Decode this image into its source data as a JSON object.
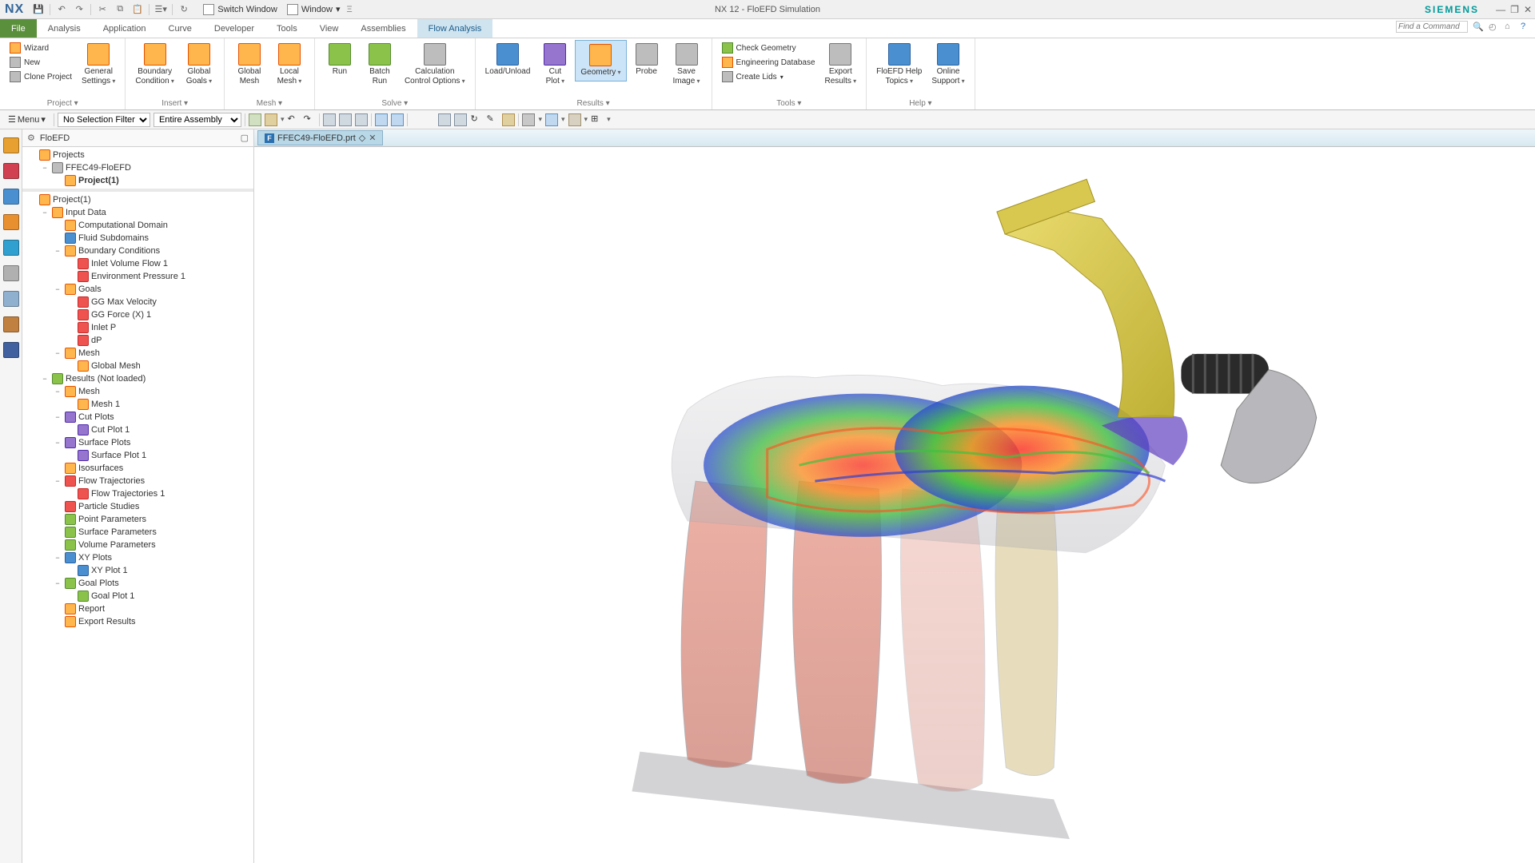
{
  "titlebar": {
    "logo": "NX",
    "switch_window": "Switch Window",
    "window_menu": "Window",
    "title": "NX 12 - FloEFD Simulation",
    "brand": "SIEMENS"
  },
  "tabs": {
    "file": "File",
    "items": [
      "Analysis",
      "Application",
      "Curve",
      "Developer",
      "Tools",
      "View",
      "Assemblies",
      "Flow Analysis"
    ],
    "active": "Flow Analysis",
    "search_placeholder": "Find a Command"
  },
  "ribbon": {
    "groups": [
      {
        "label": "Project",
        "small": [
          {
            "label": "Wizard",
            "ico": "ico-orange"
          },
          {
            "label": "New",
            "ico": "ico-gray"
          },
          {
            "label": "Clone Project",
            "ico": "ico-gray"
          }
        ],
        "big": [
          {
            "label": "General\nSettings",
            "dd": true,
            "ico": "ico-orange"
          }
        ]
      },
      {
        "label": "Insert",
        "big": [
          {
            "label": "Boundary\nCondition",
            "dd": true,
            "ico": "ico-orange"
          },
          {
            "label": "Global\nGoals",
            "dd": true,
            "ico": "ico-orange"
          }
        ]
      },
      {
        "label": "Mesh",
        "big": [
          {
            "label": "Global\nMesh",
            "ico": "ico-orange"
          },
          {
            "label": "Local\nMesh",
            "dd": true,
            "ico": "ico-orange"
          }
        ]
      },
      {
        "label": "Solve",
        "big": [
          {
            "label": "Run",
            "ico": "ico-green"
          },
          {
            "label": "Batch\nRun",
            "ico": "ico-green"
          },
          {
            "label": "Calculation\nControl Options",
            "dd": true,
            "ico": "ico-gray"
          }
        ]
      },
      {
        "label": "Results",
        "big": [
          {
            "label": "Load/Unload",
            "ico": "ico-blue"
          },
          {
            "label": "Cut\nPlot",
            "dd": true,
            "ico": "ico-purple"
          },
          {
            "label": "Geometry",
            "dd": true,
            "ico": "ico-orange",
            "active": true
          },
          {
            "label": "Probe",
            "ico": "ico-gray"
          },
          {
            "label": "Save\nImage",
            "dd": true,
            "ico": "ico-gray"
          }
        ]
      },
      {
        "label": "Tools",
        "small": [
          {
            "label": "Check Geometry",
            "ico": "ico-green"
          },
          {
            "label": "Engineering Database",
            "ico": "ico-orange"
          },
          {
            "label": "Create Lids",
            "dd": true,
            "ico": "ico-gray"
          }
        ],
        "big": [
          {
            "label": "Export\nResults",
            "dd": true,
            "ico": "ico-gray"
          }
        ]
      },
      {
        "label": "Help",
        "big": [
          {
            "label": "FloEFD Help\nTopics",
            "dd": true,
            "ico": "ico-blue"
          },
          {
            "label": "Online\nSupport",
            "dd": true,
            "ico": "ico-blue"
          }
        ]
      }
    ]
  },
  "selbar": {
    "menu": "Menu",
    "filter": "No Selection Filter",
    "scope": "Entire Assembly"
  },
  "panel": {
    "title": "FloEFD",
    "top_tree": [
      {
        "indent": 0,
        "toggle": "",
        "ico": "ico-orange",
        "label": "Projects"
      },
      {
        "indent": 1,
        "toggle": "−",
        "ico": "ico-gray",
        "label": "FFEC49-FloEFD"
      },
      {
        "indent": 2,
        "toggle": "",
        "ico": "ico-orange",
        "label": "Project(1)",
        "bold": true
      }
    ],
    "bot_tree": [
      {
        "indent": 0,
        "toggle": "",
        "ico": "ico-orange",
        "label": "Project(1)"
      },
      {
        "indent": 1,
        "toggle": "−",
        "ico": "ico-orange",
        "label": "Input Data"
      },
      {
        "indent": 2,
        "toggle": "",
        "ico": "ico-orange",
        "label": "Computational Domain"
      },
      {
        "indent": 2,
        "toggle": "",
        "ico": "ico-blue",
        "label": "Fluid Subdomains"
      },
      {
        "indent": 2,
        "toggle": "−",
        "ico": "ico-orange",
        "label": "Boundary Conditions"
      },
      {
        "indent": 3,
        "toggle": "",
        "ico": "ico-red",
        "label": "Inlet Volume Flow 1"
      },
      {
        "indent": 3,
        "toggle": "",
        "ico": "ico-red",
        "label": "Environment Pressure 1"
      },
      {
        "indent": 2,
        "toggle": "−",
        "ico": "ico-orange",
        "label": "Goals"
      },
      {
        "indent": 3,
        "toggle": "",
        "ico": "ico-red",
        "label": "GG Max Velocity"
      },
      {
        "indent": 3,
        "toggle": "",
        "ico": "ico-red",
        "label": "GG Force (X) 1"
      },
      {
        "indent": 3,
        "toggle": "",
        "ico": "ico-red",
        "label": "Inlet P"
      },
      {
        "indent": 3,
        "toggle": "",
        "ico": "ico-red",
        "label": "dP"
      },
      {
        "indent": 2,
        "toggle": "−",
        "ico": "ico-orange",
        "label": "Mesh"
      },
      {
        "indent": 3,
        "toggle": "",
        "ico": "ico-orange",
        "label": "Global Mesh"
      },
      {
        "indent": 1,
        "toggle": "−",
        "ico": "ico-green",
        "label": "Results (Not loaded)"
      },
      {
        "indent": 2,
        "toggle": "−",
        "ico": "ico-orange",
        "label": "Mesh"
      },
      {
        "indent": 3,
        "toggle": "",
        "ico": "ico-orange",
        "label": "Mesh 1"
      },
      {
        "indent": 2,
        "toggle": "−",
        "ico": "ico-purple",
        "label": "Cut Plots"
      },
      {
        "indent": 3,
        "toggle": "",
        "ico": "ico-purple",
        "label": "Cut Plot 1"
      },
      {
        "indent": 2,
        "toggle": "−",
        "ico": "ico-purple",
        "label": "Surface Plots"
      },
      {
        "indent": 3,
        "toggle": "",
        "ico": "ico-purple",
        "label": "Surface Plot 1"
      },
      {
        "indent": 2,
        "toggle": "",
        "ico": "ico-orange",
        "label": "Isosurfaces"
      },
      {
        "indent": 2,
        "toggle": "−",
        "ico": "ico-red",
        "label": "Flow Trajectories"
      },
      {
        "indent": 3,
        "toggle": "",
        "ico": "ico-red",
        "label": "Flow Trajectories 1"
      },
      {
        "indent": 2,
        "toggle": "",
        "ico": "ico-red",
        "label": "Particle Studies"
      },
      {
        "indent": 2,
        "toggle": "",
        "ico": "ico-green",
        "label": "Point Parameters"
      },
      {
        "indent": 2,
        "toggle": "",
        "ico": "ico-green",
        "label": "Surface Parameters"
      },
      {
        "indent": 2,
        "toggle": "",
        "ico": "ico-green",
        "label": "Volume Parameters"
      },
      {
        "indent": 2,
        "toggle": "−",
        "ico": "ico-blue",
        "label": "XY Plots"
      },
      {
        "indent": 3,
        "toggle": "",
        "ico": "ico-blue",
        "label": "XY Plot 1"
      },
      {
        "indent": 2,
        "toggle": "−",
        "ico": "ico-green",
        "label": "Goal Plots"
      },
      {
        "indent": 3,
        "toggle": "",
        "ico": "ico-green",
        "label": "Goal Plot 1"
      },
      {
        "indent": 2,
        "toggle": "",
        "ico": "ico-orange",
        "label": "Report"
      },
      {
        "indent": 2,
        "toggle": "",
        "ico": "ico-orange",
        "label": "Export Results"
      }
    ]
  },
  "doctab": {
    "file": "FFEC49-FloEFD.prt"
  },
  "iconstrip_colors": [
    "#e8a030",
    "#d04050",
    "#4a90d0",
    "#e89030",
    "#30a0d0",
    "#b0b0b0",
    "#90b0d0",
    "#c08040",
    "#4060a0"
  ],
  "viewport": {
    "background": "#ffffff",
    "note": "3D CFD visualization of an exhaust/intake manifold with translucent gray body and rainbow (red-orange-yellow-green-blue-purple) flow field; yellow inlet pipe top-right, black corrugated hose, gray outlet flange."
  }
}
